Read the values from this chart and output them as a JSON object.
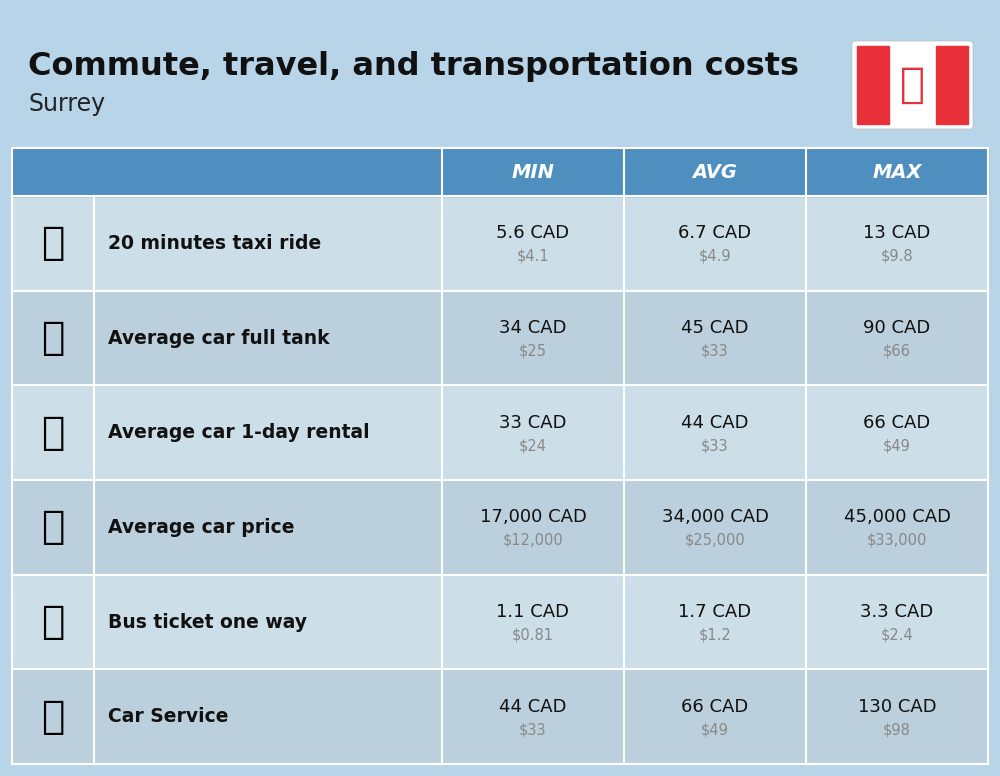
{
  "title": "Commute, travel, and transportation costs",
  "subtitle": "Surrey",
  "title_fontsize": 23,
  "subtitle_fontsize": 17,
  "header_bg": "#4f8fbf",
  "header_text_color": "#ffffff",
  "row_bg_light": "#ccdee8",
  "row_bg_dark": "#bbd0dc",
  "bg_color": "#b8d4e8",
  "col_headers": [
    "MIN",
    "AVG",
    "MAX"
  ],
  "rows": [
    {
      "label": "20 minutes taxi ride",
      "min_cad": "5.6 CAD",
      "min_usd": "$4.1",
      "avg_cad": "6.7 CAD",
      "avg_usd": "$4.9",
      "max_cad": "13 CAD",
      "max_usd": "$9.8"
    },
    {
      "label": "Average car full tank",
      "min_cad": "34 CAD",
      "min_usd": "$25",
      "avg_cad": "45 CAD",
      "avg_usd": "$33",
      "max_cad": "90 CAD",
      "max_usd": "$66"
    },
    {
      "label": "Average car 1-day rental",
      "min_cad": "33 CAD",
      "min_usd": "$24",
      "avg_cad": "44 CAD",
      "avg_usd": "$33",
      "max_cad": "66 CAD",
      "max_usd": "$49"
    },
    {
      "label": "Average car price",
      "min_cad": "17,000 CAD",
      "min_usd": "$12,000",
      "avg_cad": "34,000 CAD",
      "avg_usd": "$25,000",
      "max_cad": "45,000 CAD",
      "max_usd": "$33,000"
    },
    {
      "label": "Bus ticket one way",
      "min_cad": "1.1 CAD",
      "min_usd": "$0.81",
      "avg_cad": "1.7 CAD",
      "avg_usd": "$1.2",
      "max_cad": "3.3 CAD",
      "max_usd": "$2.4"
    },
    {
      "label": "Car Service",
      "min_cad": "44 CAD",
      "min_usd": "$33",
      "avg_cad": "66 CAD",
      "avg_usd": "$49",
      "max_cad": "130 CAD",
      "max_usd": "$98"
    }
  ]
}
